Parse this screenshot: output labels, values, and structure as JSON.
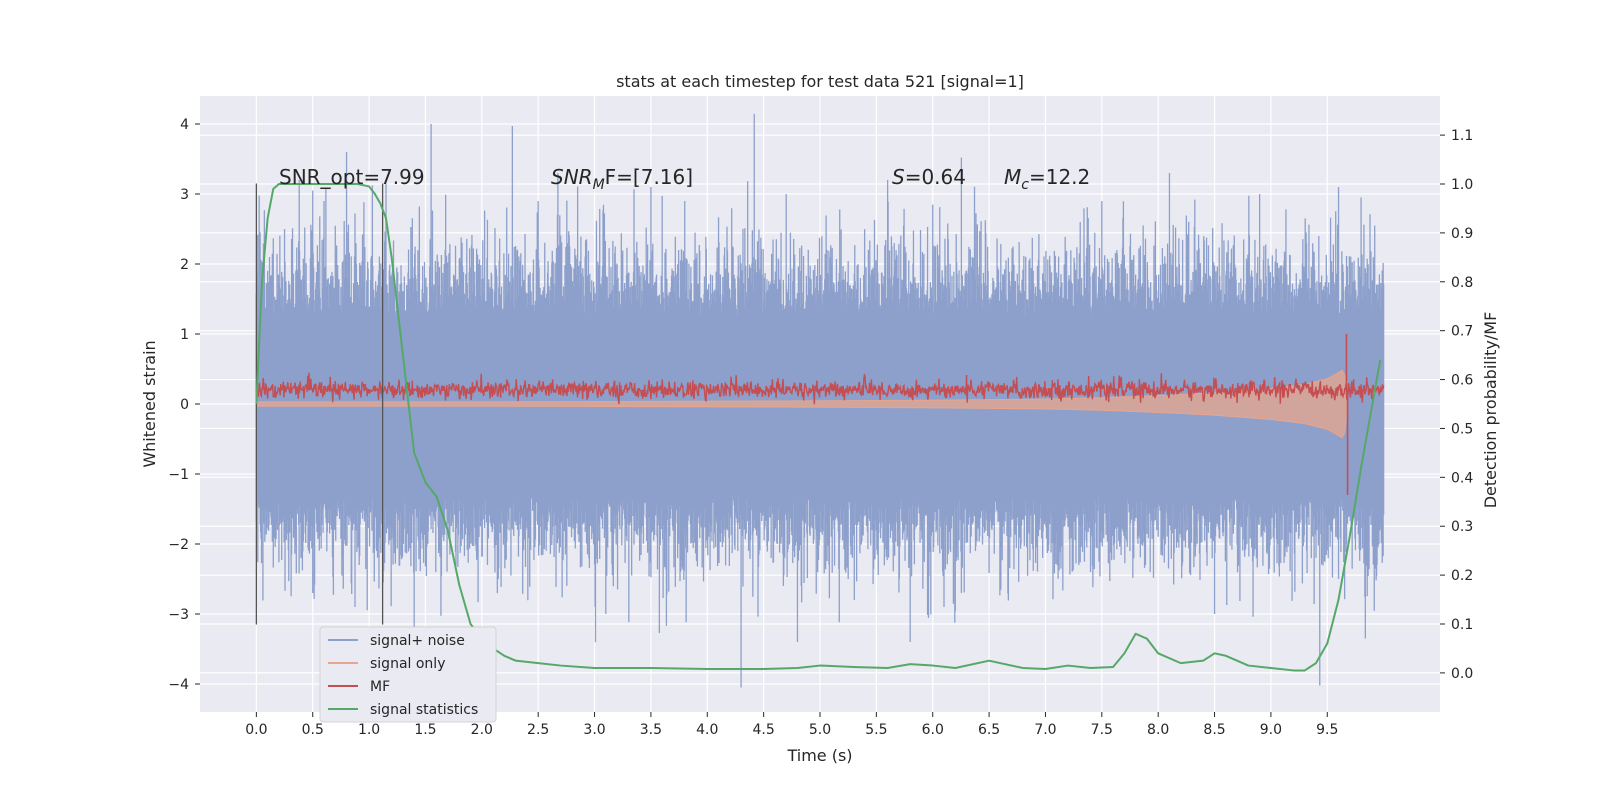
{
  "chart_data": {
    "type": "line",
    "title": "stats at each timestep for test data 521 [signal=1]",
    "xlabel": "Time (s)",
    "ylabel": "Whitened strain",
    "y2label": "Detection probability/MF",
    "xlim": [
      -0.5,
      10.5
    ],
    "ylim": [
      -4.4,
      4.4
    ],
    "y2lim": [
      -0.08,
      1.18
    ],
    "x_ticks": [
      0.0,
      0.5,
      1.0,
      1.5,
      2.0,
      2.5,
      3.0,
      3.5,
      4.0,
      4.5,
      5.0,
      5.5,
      6.0,
      6.5,
      7.0,
      7.5,
      8.0,
      8.5,
      9.0,
      9.5
    ],
    "x_tick_labels": [
      "0.0",
      "0.5",
      "1.0",
      "1.5",
      "2.0",
      "2.5",
      "3.0",
      "3.5",
      "4.0",
      "4.5",
      "5.0",
      "5.5",
      "6.0",
      "6.5",
      "7.0",
      "7.5",
      "8.0",
      "8.5",
      "9.0",
      "9.5"
    ],
    "y_ticks": [
      4,
      3,
      2,
      1,
      0,
      -1,
      -2,
      -3,
      -4
    ],
    "y_tick_labels": [
      "4",
      "3",
      "2",
      "1",
      "0",
      "−1",
      "−2",
      "−3",
      "−4"
    ],
    "y2_ticks": [
      1.1,
      1.0,
      0.9,
      0.8,
      0.7,
      0.6,
      0.5,
      0.4,
      0.3,
      0.2,
      0.1,
      0.0
    ],
    "y2_tick_labels": [
      "1.1",
      "1.0",
      "0.9",
      "0.8",
      "0.7",
      "0.6",
      "0.5",
      "0.4",
      "0.3",
      "0.2",
      "0.1",
      "0.0"
    ],
    "grid": true,
    "legend_position": "lower-left",
    "colors": {
      "noise": "#8da0cb",
      "signal": "#e8a58c",
      "mf": "#c44e52",
      "stats": "#55a868",
      "vline": "#555555",
      "background": "#eaeaf2",
      "grid": "#ffffff"
    },
    "annotations": {
      "snr_opt": "SNR_opt=7.99",
      "snr_mf_prefix": "SNR",
      "snr_mf_sub": "M",
      "snr_mf_suffix": "F=[7.16]",
      "s_sym": "S",
      "s_value": "=0.64",
      "mc_sym": "M",
      "mc_sub": "c",
      "mc_value": "=12.2"
    },
    "vlines": [
      0.0,
      1.12
    ],
    "vline_range": [
      -3.15,
      3.15
    ],
    "series": [
      {
        "name": "signal+ noise",
        "style": "noise-band",
        "x_range": [
          0.0,
          10.0
        ],
        "band_envelope_y": [
          -1.3,
          1.25
        ],
        "peak_values": [
          [
            0.25,
            2.5
          ],
          [
            0.38,
            3.2
          ],
          [
            0.5,
            3.05
          ],
          [
            0.6,
            2.9
          ],
          [
            0.8,
            3.6
          ],
          [
            1.15,
            3.15
          ],
          [
            1.55,
            4.0
          ],
          [
            2.5,
            2.9
          ],
          [
            3.5,
            3.1
          ],
          [
            3.8,
            2.9
          ],
          [
            4.7,
            3.0
          ],
          [
            5.6,
            3.2
          ],
          [
            6.0,
            2.85
          ],
          [
            7.5,
            2.9
          ],
          [
            8.1,
            3.3
          ],
          [
            8.9,
            3.0
          ],
          [
            9.6,
            3.1
          ],
          [
            9.8,
            2.95
          ],
          [
            0.5,
            -2.7
          ],
          [
            1.4,
            -3.2
          ],
          [
            2.05,
            -2.3
          ],
          [
            3.1,
            -3.0
          ],
          [
            4.3,
            -4.05
          ],
          [
            4.8,
            -3.4
          ],
          [
            5.8,
            -3.4
          ],
          [
            6.1,
            -2.9
          ],
          [
            7.4,
            -2.4
          ],
          [
            8.5,
            -3.0
          ],
          [
            9.6,
            -2.5
          ]
        ]
      },
      {
        "name": "signal only",
        "style": "chirp",
        "x": [
          0.0,
          1.0,
          2.0,
          3.0,
          4.0,
          5.0,
          6.0,
          7.0,
          7.5,
          8.0,
          8.5,
          9.0,
          9.3,
          9.5,
          9.6,
          9.65,
          9.68
        ],
        "amplitude": [
          0.03,
          0.03,
          0.03,
          0.035,
          0.04,
          0.045,
          0.055,
          0.07,
          0.09,
          0.12,
          0.16,
          0.22,
          0.28,
          0.36,
          0.45,
          0.5,
          0.0
        ]
      },
      {
        "name": "MF",
        "style": "noisy-line",
        "x_range": [
          0.0,
          10.0
        ],
        "mean": 0.2,
        "spread": 0.13,
        "spikes": [
          [
            9.67,
            1.0
          ],
          [
            9.68,
            -1.3
          ]
        ]
      },
      {
        "name": "signal statistics",
        "style": "line",
        "axis": "y2",
        "x": [
          0.0,
          0.05,
          0.1,
          0.15,
          0.2,
          0.3,
          0.5,
          0.7,
          0.9,
          1.0,
          1.05,
          1.1,
          1.15,
          1.2,
          1.3,
          1.4,
          1.5,
          1.6,
          1.7,
          1.8,
          1.9,
          2.0,
          2.1,
          2.2,
          2.3,
          2.5,
          2.7,
          3.0,
          3.5,
          4.0,
          4.5,
          4.8,
          5.0,
          5.3,
          5.6,
          5.8,
          6.0,
          6.2,
          6.5,
          6.8,
          7.0,
          7.2,
          7.4,
          7.6,
          7.7,
          7.8,
          7.9,
          8.0,
          8.2,
          8.4,
          8.5,
          8.6,
          8.8,
          9.0,
          9.2,
          9.3,
          9.4,
          9.5,
          9.6,
          9.7,
          9.8,
          9.9,
          9.97
        ],
        "y": [
          0.55,
          0.8,
          0.93,
          0.99,
          1.0,
          1.0,
          1.0,
          1.0,
          1.0,
          0.995,
          0.98,
          0.96,
          0.93,
          0.85,
          0.65,
          0.45,
          0.39,
          0.36,
          0.29,
          0.18,
          0.1,
          0.07,
          0.05,
          0.035,
          0.025,
          0.02,
          0.015,
          0.01,
          0.01,
          0.008,
          0.008,
          0.01,
          0.015,
          0.012,
          0.01,
          0.018,
          0.015,
          0.01,
          0.025,
          0.01,
          0.008,
          0.015,
          0.01,
          0.012,
          0.04,
          0.08,
          0.07,
          0.04,
          0.02,
          0.025,
          0.04,
          0.035,
          0.015,
          0.01,
          0.005,
          0.005,
          0.02,
          0.06,
          0.15,
          0.28,
          0.42,
          0.55,
          0.64
        ]
      }
    ]
  }
}
